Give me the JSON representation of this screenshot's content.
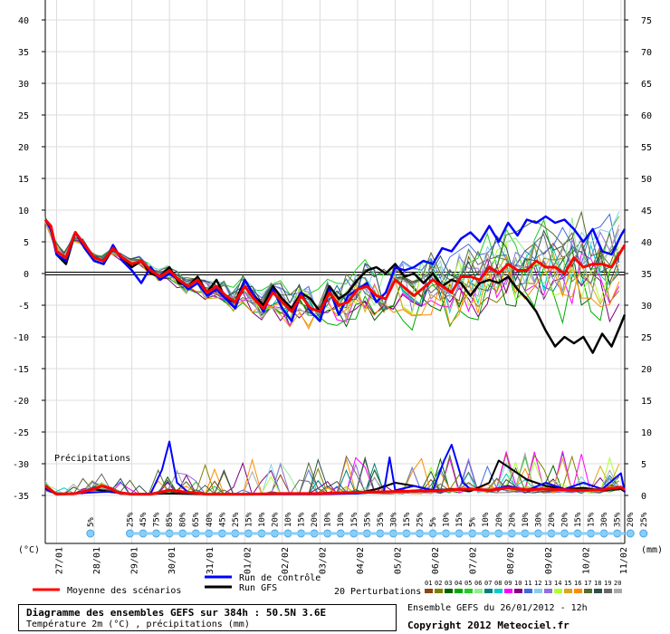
{
  "chart_data": {
    "type": "line",
    "temperature_axis": {
      "ticks": [
        40,
        35,
        30,
        25,
        20,
        15,
        10,
        5,
        0,
        -5,
        -10,
        -15,
        -20,
        -25,
        -30,
        -35
      ],
      "unit_label": "(°C)",
      "range": [
        -35,
        43
      ]
    },
    "precip_axis": {
      "ticks": [
        75,
        70,
        65,
        60,
        55,
        50,
        45,
        40,
        35,
        30,
        25,
        20,
        15,
        10,
        5,
        0
      ],
      "unit_label": "(mm)"
    },
    "x_axis": {
      "dates": [
        "27/01",
        "28/01",
        "29/01",
        "30/01",
        "31/01",
        "01/02",
        "02/02",
        "03/02",
        "04/02",
        "05/02",
        "06/02",
        "07/02",
        "08/02",
        "09/02",
        "10/02",
        "11/02"
      ],
      "start_day": -0.3,
      "end_day": 15.1
    },
    "precip_label": "Précipitations",
    "probabilities": [
      "5%",
      "25%",
      "45%",
      "75%",
      "85%",
      "80%",
      "65%",
      "40%",
      "45%",
      "25%",
      "15%",
      "10%",
      "20%",
      "10%",
      "15%",
      "20%",
      "10%",
      "10%",
      "15%",
      "35%",
      "35%",
      "30%",
      "15%",
      "25%",
      "5%",
      "10%",
      "15%",
      "5%",
      "10%",
      "20%",
      "20%",
      "10%",
      "30%",
      "20%",
      "20%",
      "15%",
      "15%",
      "30%",
      "35%",
      "20%",
      "25%"
    ],
    "series": [
      {
        "name": "Moyenne des scénarios",
        "color": "#ff0000",
        "temp_x": [
          -0.3,
          -0.15,
          0.0,
          0.25,
          0.5,
          0.75,
          1.0,
          1.25,
          1.5,
          1.75,
          2.0,
          2.25,
          2.5,
          2.75,
          3.0,
          3.25,
          3.5,
          3.75,
          4.0,
          4.25,
          4.5,
          4.75,
          5.0,
          5.25,
          5.5,
          5.75,
          6.0,
          6.25,
          6.5,
          6.75,
          7.0,
          7.25,
          7.5,
          7.75,
          8.0,
          8.25,
          8.5,
          8.75,
          9.0,
          9.5,
          10.0,
          10.25,
          10.5,
          10.75,
          11.0,
          11.25,
          11.5,
          11.75,
          12.0,
          12.25,
          12.5,
          12.75,
          13.0,
          13.25,
          13.5,
          13.75,
          14.0,
          14.25,
          14.5,
          14.75,
          15.0,
          15.1
        ],
        "temp": [
          8.5,
          7.5,
          3.5,
          2.5,
          6.5,
          4.5,
          2.5,
          2.0,
          4.0,
          2.5,
          1.5,
          2.0,
          0.5,
          -0.5,
          0.5,
          -1.0,
          -2.0,
          -1.0,
          -3.0,
          -2.0,
          -3.5,
          -4.5,
          -2.0,
          -4.0,
          -5.5,
          -3.0,
          -4.5,
          -6.0,
          -3.5,
          -5.5,
          -6.0,
          -3.0,
          -5.0,
          -4.5,
          -2.5,
          -2.0,
          -3.5,
          -4.0,
          -1.0,
          -3.5,
          -1.0,
          -2.0,
          -3.0,
          -0.5,
          -0.5,
          -1.0,
          1.0,
          0.0,
          1.5,
          0.5,
          0.5,
          2.0,
          1.0,
          1.0,
          0.0,
          2.5,
          1.0,
          1.5,
          1.5,
          1.0,
          3.5,
          4.5
        ],
        "precip_x": [
          -0.3,
          0.0,
          0.5,
          1.0,
          1.2,
          1.4,
          1.6,
          2.0,
          2.5,
          3.0,
          3.5,
          4.0,
          5.0,
          6.0,
          7.0,
          8.0,
          9.0,
          9.5,
          10.0,
          10.5,
          11.0,
          11.5,
          12.0,
          12.5,
          13.0,
          13.5,
          14.0,
          14.5,
          15.0,
          15.1
        ],
        "precip": [
          1.5,
          0.2,
          0.3,
          1.0,
          1.5,
          1.2,
          0.5,
          0.2,
          0.2,
          0.8,
          0.5,
          0.2,
          0.2,
          0.3,
          0.3,
          0.5,
          0.6,
          0.7,
          0.7,
          0.9,
          1.0,
          0.8,
          1.2,
          0.9,
          1.0,
          0.9,
          0.8,
          0.9,
          1.3,
          0.9
        ]
      },
      {
        "name": "Run de contrôle",
        "color": "#0000ff",
        "temp_x": [
          -0.3,
          -0.15,
          0.0,
          0.25,
          0.5,
          0.75,
          1.0,
          1.25,
          1.5,
          1.75,
          2.0,
          2.25,
          2.5,
          2.75,
          3.0,
          3.25,
          3.5,
          3.75,
          4.0,
          4.25,
          4.5,
          4.75,
          5.0,
          5.25,
          5.5,
          5.75,
          6.0,
          6.25,
          6.5,
          6.75,
          7.0,
          7.25,
          7.5,
          7.75,
          8.0,
          8.25,
          8.5,
          8.75,
          9.0,
          9.25,
          9.5,
          9.75,
          10.0,
          10.25,
          10.5,
          10.75,
          11.0,
          11.25,
          11.5,
          11.75,
          12.0,
          12.25,
          12.5,
          12.75,
          13.0,
          13.25,
          13.5,
          13.75,
          14.0,
          14.25,
          14.5,
          14.75,
          15.0,
          15.1
        ],
        "temp": [
          8.5,
          7.0,
          3.0,
          2.0,
          6.5,
          4.0,
          2.0,
          1.5,
          4.5,
          2.0,
          0.5,
          -1.5,
          1.0,
          -1.0,
          0.0,
          -1.0,
          -2.5,
          -1.5,
          -3.5,
          -2.5,
          -4.0,
          -5.5,
          -1.0,
          -3.5,
          -6.0,
          -2.5,
          -5.5,
          -7.5,
          -3.0,
          -6.0,
          -7.5,
          -2.5,
          -6.5,
          -3.5,
          -2.5,
          -1.5,
          -4.5,
          -3.0,
          1.0,
          0.5,
          1.0,
          2.0,
          1.5,
          4.0,
          3.5,
          5.5,
          6.5,
          5.0,
          7.5,
          5.0,
          8.0,
          6.0,
          8.5,
          8.0,
          9.0,
          8.0,
          8.5,
          7.0,
          5.0,
          7.0,
          3.5,
          3.0,
          6.0,
          7.0
        ],
        "precip_x": [
          -0.3,
          0.0,
          0.5,
          1.0,
          1.5,
          2.0,
          2.5,
          2.8,
          3.0,
          3.2,
          3.5,
          4.0,
          5.0,
          6.0,
          7.0,
          8.0,
          8.7,
          8.85,
          9.0,
          9.5,
          10.0,
          10.3,
          10.5,
          10.8,
          11.0,
          11.5,
          12.0,
          12.5,
          13.0,
          13.5,
          14.0,
          14.5,
          14.8,
          15.0,
          15.1
        ],
        "precip": [
          1.0,
          0.2,
          0.3,
          0.5,
          0.6,
          0.2,
          0.3,
          4.0,
          8.5,
          2.0,
          0.5,
          0.2,
          0.2,
          0.2,
          0.2,
          0.3,
          0.6,
          6.0,
          0.8,
          1.5,
          0.8,
          5.5,
          8.0,
          2.0,
          1.0,
          0.8,
          1.5,
          0.8,
          2.0,
          1.0,
          2.0,
          1.0,
          2.5,
          3.5,
          0.5
        ]
      },
      {
        "name": "Run GFS",
        "color": "#000000",
        "temp_x": [
          -0.3,
          -0.15,
          0.0,
          0.25,
          0.5,
          0.75,
          1.0,
          1.25,
          1.5,
          1.75,
          2.0,
          2.25,
          2.5,
          2.75,
          3.0,
          3.25,
          3.5,
          3.75,
          4.0,
          4.25,
          4.5,
          4.75,
          5.0,
          5.25,
          5.5,
          5.75,
          6.0,
          6.25,
          6.5,
          6.75,
          7.0,
          7.25,
          7.5,
          7.75,
          8.0,
          8.25,
          8.5,
          8.75,
          9.0,
          9.25,
          9.5,
          9.75,
          10.0,
          10.25,
          10.5,
          10.75,
          11.0,
          11.25,
          11.5,
          11.75,
          12.0,
          12.25,
          12.5,
          12.75,
          13.0,
          13.25,
          13.5,
          13.75,
          14.0,
          14.25,
          14.5,
          14.75,
          15.0,
          15.1
        ],
        "temp": [
          8.5,
          7.5,
          3.0,
          1.5,
          6.5,
          4.0,
          2.0,
          1.5,
          4.0,
          2.5,
          1.0,
          2.0,
          0.0,
          -0.5,
          1.0,
          -1.5,
          -2.0,
          -0.5,
          -3.0,
          -1.0,
          -4.0,
          -4.5,
          -1.0,
          -3.5,
          -5.0,
          -2.0,
          -4.0,
          -5.5,
          -3.0,
          -4.0,
          -6.0,
          -2.0,
          -4.0,
          -3.0,
          -1.0,
          0.5,
          1.0,
          0.0,
          1.5,
          -0.5,
          0.0,
          -1.5,
          0.0,
          -2.0,
          -1.0,
          -1.5,
          -3.5,
          -1.5,
          -1.0,
          -1.5,
          -0.5,
          -2.5,
          -4.0,
          -6.0,
          -9.0,
          -11.5,
          -10.0,
          -11.0,
          -10.0,
          -12.5,
          -9.5,
          -11.5,
          -8.0,
          -6.5
        ],
        "precip_x": [
          -0.3,
          0.0,
          0.5,
          1.0,
          1.5,
          2.0,
          3.0,
          4.0,
          5.0,
          6.0,
          7.0,
          8.0,
          8.5,
          9.0,
          9.5,
          10.0,
          10.5,
          11.0,
          11.5,
          11.75,
          12.0,
          12.25,
          12.5,
          13.0,
          13.5,
          14.0,
          14.5,
          15.0,
          15.1
        ],
        "precip": [
          1.2,
          0.3,
          0.3,
          1.0,
          0.5,
          0.2,
          0.3,
          0.2,
          0.2,
          0.2,
          0.2,
          0.4,
          1.0,
          2.0,
          1.5,
          0.8,
          1.0,
          0.7,
          2.0,
          5.5,
          4.5,
          3.5,
          2.5,
          1.5,
          1.0,
          1.2,
          0.8,
          1.0,
          0.6
        ]
      }
    ],
    "members": [
      {
        "color": "#8b4513",
        "seed": 1
      },
      {
        "color": "#808000",
        "seed": 2
      },
      {
        "color": "#006400",
        "seed": 3
      },
      {
        "color": "#00aa00",
        "seed": 4
      },
      {
        "color": "#22cc22",
        "seed": 5
      },
      {
        "color": "#90ee90",
        "seed": 6
      },
      {
        "color": "#008080",
        "seed": 7
      },
      {
        "color": "#00cccc",
        "seed": 8
      },
      {
        "color": "#ff00ff",
        "seed": 9
      },
      {
        "color": "#800080",
        "seed": 10
      },
      {
        "color": "#4169e1",
        "seed": 11
      },
      {
        "color": "#87ceeb",
        "seed": 12
      },
      {
        "color": "#9370db",
        "seed": 13
      },
      {
        "color": "#adff2f",
        "seed": 14
      },
      {
        "color": "#daa520",
        "seed": 15
      },
      {
        "color": "#ff8c00",
        "seed": 16
      },
      {
        "color": "#556b2f",
        "seed": 17
      },
      {
        "color": "#2f4f4f",
        "seed": 18
      },
      {
        "color": "#696969",
        "seed": 19
      },
      {
        "color": "#a9a9a9",
        "seed": 20
      }
    ],
    "member_swatch_labels": [
      "01",
      "02",
      "03",
      "04",
      "05",
      "06",
      "07",
      "08",
      "09",
      "10",
      "11",
      "12",
      "13",
      "14",
      "15",
      "16",
      "17",
      "18",
      "19",
      "20"
    ]
  },
  "legend": {
    "mean_label": "Moyenne des scénarios",
    "control_label": "Run de contrôle",
    "gfs_label": "Run GFS",
    "perturbations_label": "20 Perturbations"
  },
  "footer": {
    "title": "Diagramme des ensembles GEFS sur 384h : 50.5N 3.6E",
    "subtitle": "Température 2m (°C) , précipitations (mm)",
    "ensemble_info": "Ensemble GEFS du 26/01/2012 - 12h",
    "copyright": "Copyright 2012 Meteociel.fr"
  }
}
